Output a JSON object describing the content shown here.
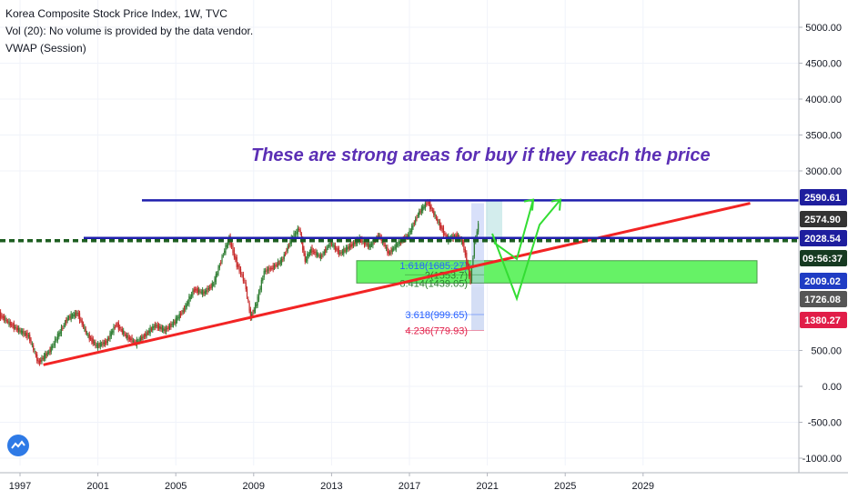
{
  "header": {
    "title": "Korea Composite Stock Price Index, 1W, TVC",
    "volume": "Vol (20): No volume is provided by the data vendor.",
    "indicator": "VWAP (Session)"
  },
  "annotation": "These are strong areas for buy if they reach the price",
  "chart_data": {
    "type": "line",
    "y_ticks": [
      "5000.00",
      "4500.00",
      "4000.00",
      "3500.00",
      "3000.00",
      "500.00",
      "0.00",
      "-500.00",
      "-1000.00"
    ],
    "x_ticks": [
      "1997",
      "2001",
      "2005",
      "2009",
      "2013",
      "2017",
      "2021",
      "2025",
      "2029"
    ],
    "price_tags": [
      {
        "label": "2590.61",
        "value": 2590.61,
        "color": "#1e1e9e"
      },
      {
        "label": "2574.90",
        "value": 2574.9,
        "color": "#333333"
      },
      {
        "label": "2028.54",
        "value": 2028.54,
        "color": "#1e1e9e"
      },
      {
        "label": "09:56:37",
        "value": 2009.02,
        "color": "#163a21"
      },
      {
        "label": "2009.02",
        "value": 2009.02,
        "color": "#1f3cc4"
      },
      {
        "label": "1726.08",
        "value": 1726.08,
        "color": "#555555"
      },
      {
        "label": "1380.27",
        "value": 1380.27,
        "color": "#e11d48"
      }
    ],
    "fib_labels": [
      {
        "label": "1.618(1685.27)",
        "value": 1685.27,
        "color": "#2962ff"
      },
      {
        "label": "2(1553.7)",
        "value": 1553.7,
        "color": "#2e7d32"
      },
      {
        "label": "3.414(1439.05)",
        "value": 1439.05,
        "color": "#2e7d32"
      },
      {
        "label": "3.618(999.65)",
        "value": 999.65,
        "color": "#2962ff"
      },
      {
        "label": "4.236(779.93)",
        "value": 779.93,
        "color": "#e11d48"
      }
    ],
    "price_series": [
      [
        1996.0,
        1000
      ],
      [
        1996.5,
        880
      ],
      [
        1997.0,
        780
      ],
      [
        1997.5,
        700
      ],
      [
        1998.0,
        330
      ],
      [
        1998.6,
        500
      ],
      [
        1999.0,
        700
      ],
      [
        1999.5,
        950
      ],
      [
        2000.0,
        1020
      ],
      [
        2000.5,
        720
      ],
      [
        2001.0,
        560
      ],
      [
        2001.5,
        620
      ],
      [
        2002.0,
        870
      ],
      [
        2002.5,
        700
      ],
      [
        2003.0,
        600
      ],
      [
        2003.5,
        720
      ],
      [
        2004.0,
        850
      ],
      [
        2004.5,
        780
      ],
      [
        2005.0,
        900
      ],
      [
        2005.5,
        1080
      ],
      [
        2006.0,
        1350
      ],
      [
        2006.5,
        1300
      ],
      [
        2007.0,
        1430
      ],
      [
        2007.5,
        1850
      ],
      [
        2007.8,
        2060
      ],
      [
        2008.2,
        1700
      ],
      [
        2008.6,
        1450
      ],
      [
        2008.9,
        960
      ],
      [
        2009.2,
        1150
      ],
      [
        2009.6,
        1600
      ],
      [
        2010.0,
        1650
      ],
      [
        2010.5,
        1750
      ],
      [
        2011.0,
        2050
      ],
      [
        2011.4,
        2200
      ],
      [
        2011.7,
        1750
      ],
      [
        2012.0,
        1900
      ],
      [
        2012.5,
        1800
      ],
      [
        2013.0,
        2000
      ],
      [
        2013.5,
        1850
      ],
      [
        2014.0,
        1950
      ],
      [
        2014.5,
        2050
      ],
      [
        2015.0,
        1950
      ],
      [
        2015.5,
        2100
      ],
      [
        2016.0,
        1850
      ],
      [
        2016.5,
        2000
      ],
      [
        2017.0,
        2100
      ],
      [
        2017.5,
        2400
      ],
      [
        2018.0,
        2570
      ],
      [
        2018.5,
        2300
      ],
      [
        2019.0,
        2050
      ],
      [
        2019.5,
        2100
      ],
      [
        2019.8,
        2000
      ],
      [
        2020.2,
        1470
      ],
      [
        2020.4,
        2000
      ],
      [
        2020.6,
        2250
      ]
    ],
    "trendline": [
      [
        1998.2,
        300
      ],
      [
        2034.5,
        2550
      ]
    ],
    "resistance": 2590.61,
    "support": 2028.54,
    "support_dashed": 2028.54,
    "buy_zone": [
      1439.05,
      1750
    ],
    "ylim": [
      -1200,
      5350
    ]
  },
  "colors": {
    "trendline": "#f22424",
    "levels": "#1e1ead",
    "dashed": "#1d5e20",
    "zone": "#66f266",
    "arrows": "#33dd33",
    "candle_up": "#2e7d32",
    "candle_down": "#c62828"
  }
}
